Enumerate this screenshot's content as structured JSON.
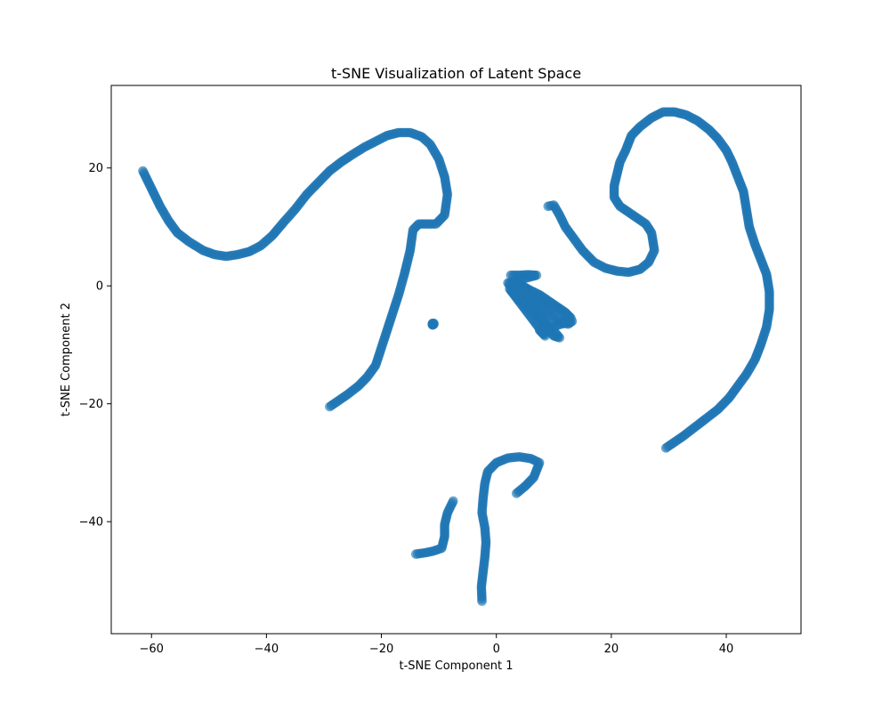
{
  "chart_data": {
    "type": "scatter",
    "title": "t-SNE Visualization of Latent Space",
    "xlabel": "t-SNE Component 1",
    "ylabel": "t-SNE Component 2",
    "xlim": [
      -67,
      53
    ],
    "ylim": [
      -59,
      34
    ],
    "xticks": [
      -60,
      -40,
      -20,
      0,
      20,
      40
    ],
    "yticks": [
      -40,
      -20,
      0,
      20
    ],
    "xtick_labels": [
      "−60",
      "−40",
      "−20",
      "0",
      "20",
      "40"
    ],
    "ytick_labels": [
      "−40",
      "−20",
      "0",
      "20"
    ],
    "grid": false,
    "legend": "none",
    "marker_color": "#1f77b4",
    "marker_alpha": 0.6,
    "series": [
      {
        "points": [
          [
            -61.5,
            19.5
          ],
          [
            -60,
            16.5
          ],
          [
            -58.5,
            13.5
          ],
          [
            -57,
            11
          ],
          [
            -55.5,
            9
          ],
          [
            -53.5,
            7.5
          ],
          [
            -51,
            6
          ],
          [
            -49,
            5.3
          ],
          [
            -47,
            5
          ],
          [
            -45,
            5.3
          ],
          [
            -43,
            5.8
          ],
          [
            -41,
            6.8
          ],
          [
            -39,
            8.5
          ],
          [
            -37,
            10.8
          ],
          [
            -35,
            13
          ],
          [
            -33,
            15.5
          ],
          [
            -31,
            17.5
          ],
          [
            -29,
            19.5
          ],
          [
            -27,
            21
          ],
          [
            -25,
            22.3
          ],
          [
            -23,
            23.5
          ],
          [
            -21,
            24.5
          ],
          [
            -19,
            25.5
          ],
          [
            -17,
            26
          ],
          [
            -15,
            26
          ],
          [
            -13,
            25.3
          ],
          [
            -11.5,
            24
          ],
          [
            -10,
            21.5
          ],
          [
            -9,
            18.5
          ],
          [
            -8.5,
            15.5
          ],
          [
            -9,
            12
          ],
          [
            -10.5,
            10.5
          ],
          [
            -12,
            10.5
          ],
          [
            -13.5,
            10.5
          ],
          [
            -14.5,
            9.5
          ],
          [
            -15,
            6
          ],
          [
            -16,
            2
          ],
          [
            -17,
            -1.5
          ],
          [
            -18,
            -4.5
          ],
          [
            -19,
            -7.5
          ],
          [
            -20,
            -10.5
          ],
          [
            -21,
            -13.5
          ],
          [
            -22.5,
            -15.5
          ],
          [
            -24,
            -17
          ],
          [
            -26,
            -18.5
          ],
          [
            -27.5,
            -19.5
          ],
          [
            -29,
            -20.5
          ]
        ]
      },
      {
        "points": [
          [
            -11,
            -6.5
          ]
        ]
      },
      {
        "points": [
          [
            9,
            13.5
          ],
          [
            10,
            13.7
          ],
          [
            11,
            12
          ],
          [
            12,
            10
          ],
          [
            13.5,
            8
          ],
          [
            15,
            6
          ],
          [
            17,
            4
          ],
          [
            19,
            3
          ],
          [
            21,
            2.5
          ],
          [
            23,
            2.3
          ],
          [
            25,
            2.8
          ],
          [
            26.5,
            4
          ],
          [
            27.5,
            6
          ],
          [
            27,
            9
          ],
          [
            26,
            10.5
          ],
          [
            24.5,
            11.5
          ],
          [
            23,
            12.5
          ],
          [
            21.5,
            13.5
          ],
          [
            20.5,
            15
          ],
          [
            20.5,
            17
          ],
          [
            21,
            19
          ],
          [
            21.5,
            21
          ],
          [
            22.5,
            23
          ],
          [
            23.5,
            25.5
          ],
          [
            25,
            27
          ],
          [
            27,
            28.5
          ],
          [
            29,
            29.5
          ],
          [
            31,
            29.5
          ],
          [
            33,
            29
          ],
          [
            35,
            28
          ],
          [
            37,
            26.5
          ],
          [
            38.5,
            25
          ],
          [
            40,
            23
          ],
          [
            41,
            21
          ],
          [
            42,
            18.5
          ],
          [
            43,
            16
          ],
          [
            43.5,
            13
          ],
          [
            44,
            10
          ],
          [
            45,
            7
          ],
          [
            46,
            4.5
          ],
          [
            47,
            2
          ],
          [
            47.5,
            -1
          ],
          [
            47.5,
            -4
          ],
          [
            47,
            -7
          ],
          [
            46,
            -10
          ],
          [
            45,
            -12.5
          ],
          [
            43.5,
            -15
          ],
          [
            42,
            -17
          ],
          [
            40.5,
            -19
          ],
          [
            38.5,
            -21
          ],
          [
            36.5,
            -22.5
          ],
          [
            34.5,
            -24
          ],
          [
            32.5,
            -25.5
          ],
          [
            31,
            -26.5
          ],
          [
            29.5,
            -27.5
          ]
        ]
      },
      {
        "points": [
          [
            2.5,
            1.8
          ],
          [
            4,
            1.8
          ],
          [
            5.5,
            1.9
          ],
          [
            7,
            1.8
          ],
          [
            2,
            0.5
          ],
          [
            3.5,
            -1.5
          ],
          [
            5,
            -3
          ],
          [
            6.5,
            -4.5
          ],
          [
            8,
            -6
          ],
          [
            9,
            -7.5
          ],
          [
            10,
            -8.5
          ],
          [
            11,
            -8.8
          ],
          [
            3,
            0.3
          ],
          [
            4.5,
            0
          ],
          [
            6,
            -0.8
          ],
          [
            7.5,
            -1.5
          ],
          [
            9,
            -2.5
          ],
          [
            10.5,
            -3.5
          ],
          [
            12,
            -4.5
          ],
          [
            13,
            -5.5
          ],
          [
            3.5,
            0.5
          ],
          [
            5,
            -1
          ],
          [
            6.5,
            -2.5
          ],
          [
            8,
            -3.5
          ],
          [
            9.5,
            -5
          ],
          [
            11,
            -6
          ],
          [
            12.5,
            -6.5
          ],
          [
            13.2,
            -6
          ],
          [
            7.5,
            -7.5
          ],
          [
            8.5,
            -8.5
          ],
          [
            2.3,
            -0.5
          ],
          [
            4,
            -2.3
          ],
          [
            5.8,
            -4
          ]
        ]
      },
      {
        "points": [
          [
            -2.5,
            -53.5
          ],
          [
            -2.6,
            -51
          ],
          [
            -2.3,
            -48.5
          ],
          [
            -2,
            -46
          ],
          [
            -1.8,
            -43.5
          ],
          [
            -2,
            -41
          ],
          [
            -2.5,
            -38.5
          ],
          [
            -2.3,
            -36
          ],
          [
            -2,
            -33.5
          ],
          [
            -1.5,
            -31.5
          ],
          [
            0,
            -30
          ],
          [
            2,
            -29.2
          ],
          [
            4,
            -29
          ],
          [
            6,
            -29.3
          ],
          [
            7.5,
            -30
          ],
          [
            6.5,
            -32.5
          ],
          [
            5,
            -34
          ],
          [
            3.5,
            -35.2
          ]
        ]
      },
      {
        "points": [
          [
            -14,
            -45.5
          ],
          [
            -12.5,
            -45.3
          ],
          [
            -11,
            -45
          ],
          [
            -9.5,
            -44.5
          ],
          [
            -9,
            -42.5
          ],
          [
            -9,
            -40.5
          ],
          [
            -8.5,
            -38.5
          ],
          [
            -7.5,
            -36.5
          ]
        ]
      }
    ]
  }
}
